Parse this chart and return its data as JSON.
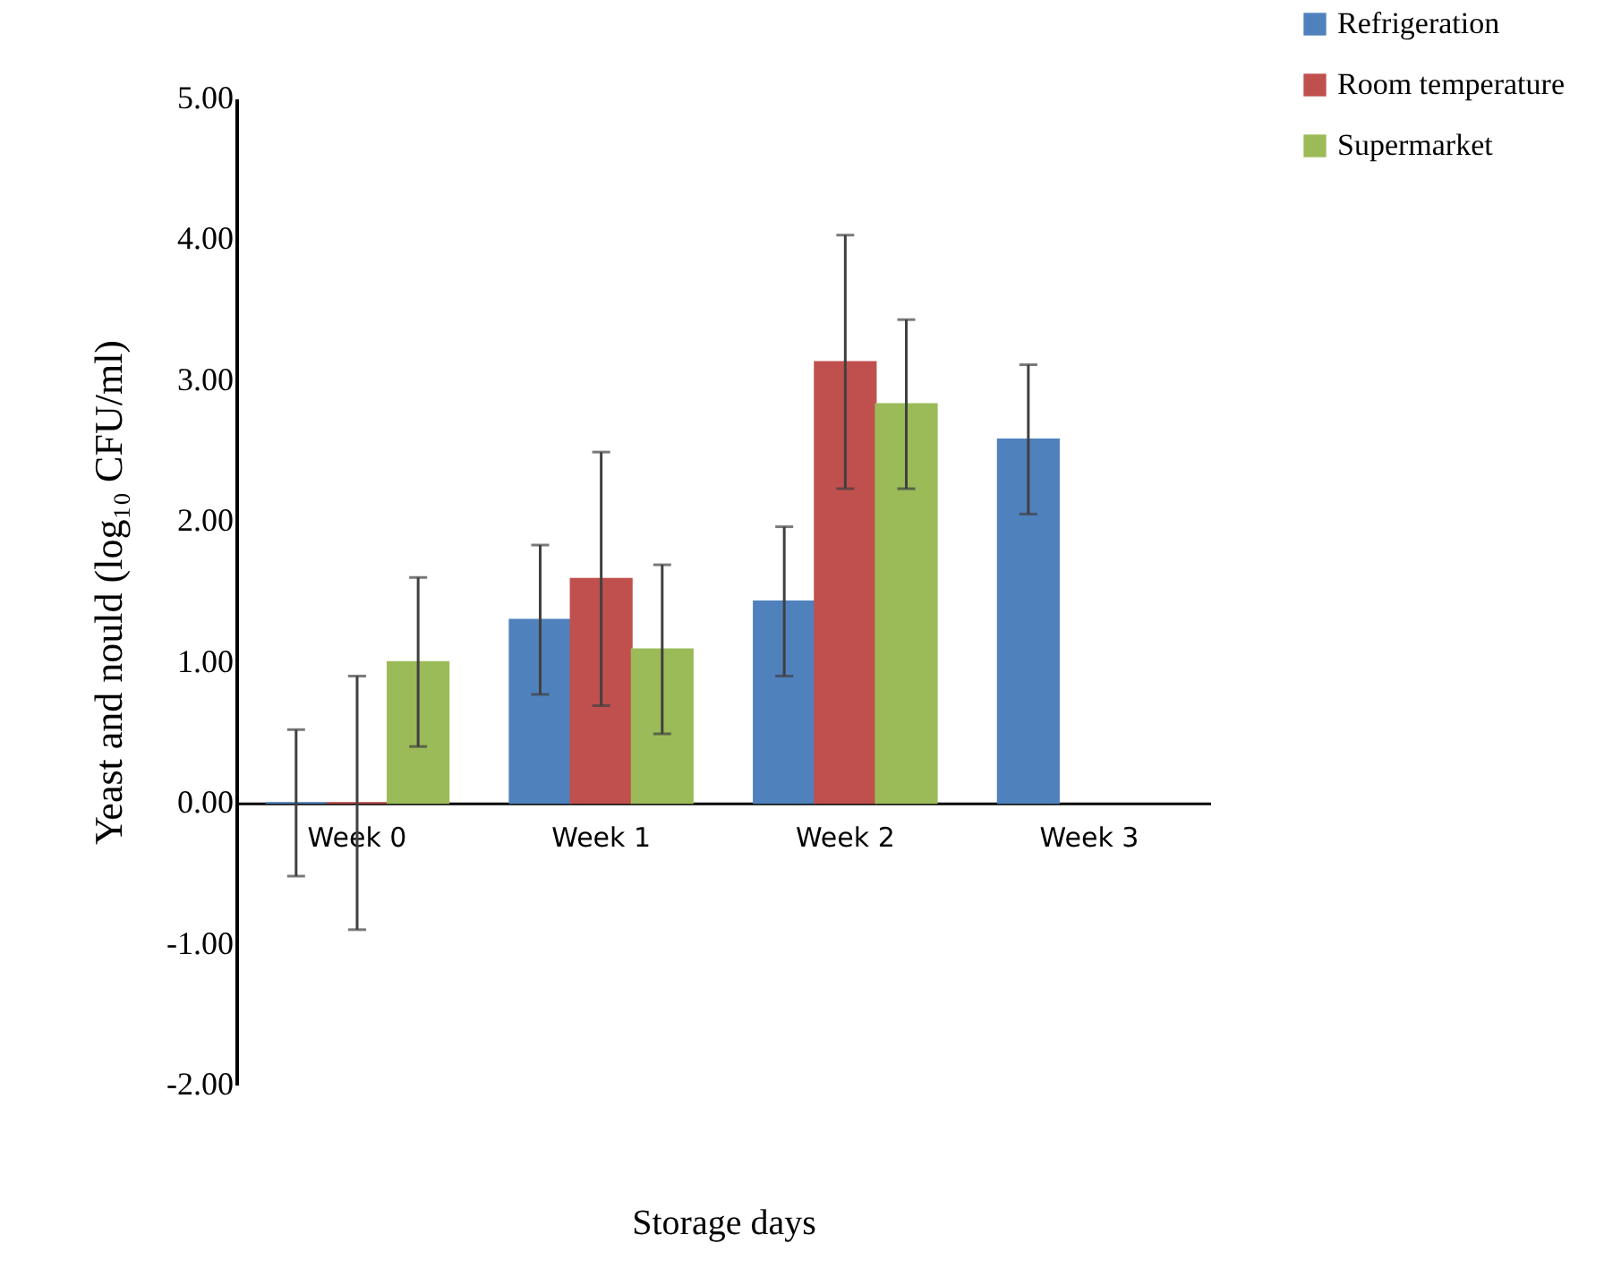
{
  "chart_data": {
    "type": "bar",
    "xlabel": "Storage days",
    "ylabel": "Yeast and nould (log₁₀ CFU/ml)",
    "categories": [
      "Week 0",
      "Week 1",
      "Week 2",
      "Week 3"
    ],
    "series": [
      {
        "name": "Refrigeration",
        "color": "#4f81bd",
        "values": [
          0,
          1.3,
          1.43,
          2.58
        ],
        "errors": [
          0.52,
          0.53,
          0.53,
          0.53
        ]
      },
      {
        "name": "Room temperature",
        "color": "#c0504d",
        "values": [
          0,
          1.59,
          3.13,
          null
        ],
        "errors": [
          0.9,
          0.9,
          0.9,
          null
        ]
      },
      {
        "name": "Supermarket",
        "color": "#9bbb59",
        "values": [
          1.0,
          1.09,
          2.83,
          null
        ],
        "errors": [
          0.6,
          0.6,
          0.6,
          null
        ]
      }
    ],
    "ylim": [
      -2,
      5
    ],
    "yticks": [
      {
        "value": -2,
        "label": "-2.00"
      },
      {
        "value": -1,
        "label": "-1.00"
      },
      {
        "value": 0,
        "label": "0.00"
      },
      {
        "value": 1,
        "label": "1.00"
      },
      {
        "value": 2,
        "label": "2.00"
      },
      {
        "value": 3,
        "label": "3.00"
      },
      {
        "value": 4,
        "label": "4.00"
      },
      {
        "value": 5,
        "label": "5.00"
      }
    ],
    "grid": false,
    "legend": "top right"
  }
}
